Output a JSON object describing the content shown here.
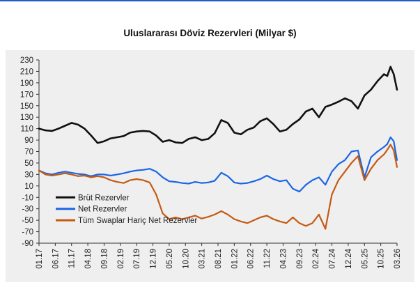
{
  "colors": {
    "accent": "#1f5fbf",
    "panel": "#efefef",
    "brut": "#111111",
    "net": "#1a66e6",
    "swap": "#c55a11",
    "axis": "#333333"
  },
  "chart_data": {
    "type": "line",
    "title": "Uluslararası  Döviz Rezervleri  (Milyar $)",
    "xlabel": "",
    "ylabel": "",
    "ylim": [
      -90,
      230
    ],
    "yticks": [
      230,
      210,
      190,
      170,
      150,
      130,
      110,
      90,
      70,
      50,
      30,
      10,
      -10,
      -30,
      -50,
      -70,
      -90
    ],
    "xlim": [
      0,
      110
    ],
    "x_tick_labels": [
      "01.17",
      "06.17",
      "11.17",
      "04.18",
      "09.18",
      "02.19",
      "07.19",
      "12.19",
      "05.20",
      "10.20",
      "03.21",
      "08.21",
      "01.22",
      "06.22",
      "11.22",
      "04.23",
      "09.23",
      "02.24",
      "07.24",
      "12.24",
      "05.25",
      "10.25",
      "03.26"
    ],
    "legend_position": "lower-left",
    "series": [
      {
        "name": "Brüt Rezervler",
        "color": "#111111",
        "x": [
          0,
          2,
          4,
          6,
          8,
          10,
          12,
          14,
          16,
          18,
          20,
          22,
          24,
          26,
          28,
          30,
          32,
          34,
          36,
          38,
          40,
          42,
          44,
          46,
          48,
          50,
          52,
          54,
          56,
          58,
          60,
          62,
          64,
          66,
          68,
          70,
          72,
          74,
          76,
          78,
          80,
          82,
          84,
          86,
          88,
          90,
          92,
          94,
          96,
          98,
          100,
          102,
          104,
          106,
          107,
          108,
          109,
          110
        ],
        "values": [
          110,
          107,
          106,
          110,
          115,
          120,
          117,
          110,
          98,
          85,
          88,
          93,
          95,
          97,
          103,
          105,
          106,
          105,
          98,
          87,
          90,
          86,
          85,
          92,
          95,
          90,
          92,
          102,
          125,
          120,
          103,
          100,
          108,
          112,
          123,
          128,
          118,
          105,
          108,
          118,
          126,
          140,
          145,
          130,
          148,
          152,
          157,
          163,
          158,
          145,
          168,
          178,
          193,
          205,
          202,
          218,
          205,
          178
        ]
      },
      {
        "name": "Net Rezervler",
        "color": "#1a66e6",
        "x": [
          0,
          2,
          4,
          6,
          8,
          10,
          12,
          14,
          16,
          18,
          20,
          22,
          24,
          26,
          28,
          30,
          32,
          34,
          36,
          38,
          40,
          42,
          44,
          46,
          48,
          50,
          52,
          54,
          56,
          58,
          60,
          62,
          64,
          66,
          68,
          70,
          72,
          74,
          76,
          78,
          80,
          82,
          84,
          86,
          88,
          90,
          92,
          94,
          96,
          98,
          100,
          102,
          104,
          106,
          107,
          108,
          109,
          110
        ],
        "values": [
          37,
          32,
          30,
          33,
          35,
          33,
          31,
          30,
          27,
          30,
          30,
          28,
          30,
          32,
          35,
          37,
          38,
          40,
          35,
          25,
          18,
          17,
          15,
          14,
          17,
          15,
          16,
          19,
          33,
          27,
          16,
          14,
          15,
          18,
          22,
          28,
          22,
          18,
          20,
          5,
          0,
          12,
          20,
          25,
          12,
          35,
          48,
          55,
          70,
          72,
          25,
          60,
          70,
          78,
          83,
          95,
          88,
          55
        ]
      },
      {
        "name": "Tüm Swaplar Hariç Net Rezervler",
        "color": "#c55a11",
        "x": [
          0,
          2,
          4,
          6,
          8,
          10,
          12,
          14,
          16,
          18,
          20,
          22,
          24,
          26,
          28,
          30,
          32,
          34,
          36,
          38,
          40,
          42,
          44,
          46,
          48,
          50,
          52,
          54,
          56,
          58,
          60,
          62,
          64,
          66,
          68,
          70,
          72,
          74,
          76,
          78,
          80,
          82,
          84,
          86,
          88,
          90,
          92,
          94,
          96,
          98,
          100,
          102,
          104,
          106,
          107,
          108,
          109,
          110
        ],
        "values": [
          37,
          30,
          28,
          30,
          32,
          30,
          27,
          28,
          25,
          27,
          25,
          20,
          17,
          15,
          20,
          22,
          20,
          16,
          -5,
          -38,
          -48,
          -45,
          -48,
          -45,
          -42,
          -47,
          -44,
          -40,
          -34,
          -40,
          -48,
          -52,
          -55,
          -50,
          -45,
          -42,
          -48,
          -52,
          -55,
          -45,
          -55,
          -60,
          -55,
          -40,
          -65,
          -5,
          20,
          35,
          50,
          62,
          20,
          40,
          55,
          65,
          73,
          82,
          72,
          43
        ]
      }
    ]
  }
}
